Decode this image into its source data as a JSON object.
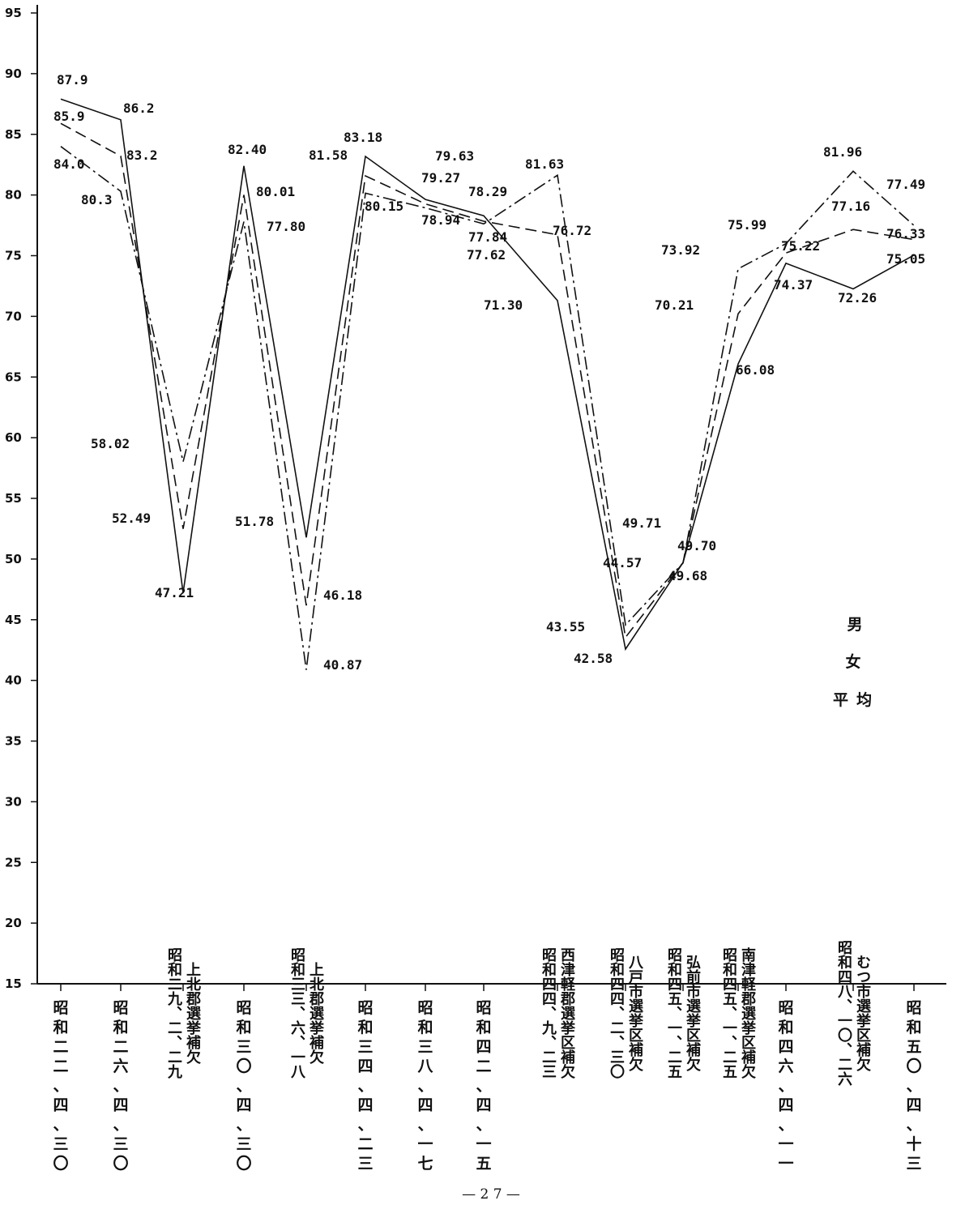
{
  "chart_data": {
    "type": "line",
    "ylim": [
      15,
      95
    ],
    "yticks": [
      "15",
      "20",
      "25",
      "30",
      "35",
      "40",
      "45",
      "50",
      "55",
      "60",
      "65",
      "70",
      "75",
      "80",
      "85",
      "90",
      "95"
    ],
    "grid": false,
    "categories": [
      [
        "昭",
        "和",
        "二",
        "二",
        "、",
        "四",
        "、",
        "三",
        "〇"
      ],
      [
        "昭",
        "和",
        "二",
        "六",
        "、",
        "四",
        "、",
        "三",
        "〇"
      ],
      [
        "上北郡選挙補欠",
        "昭和二九、二、二九"
      ],
      [
        "昭",
        "和",
        "三",
        "〇",
        "、",
        "四",
        "、",
        "三",
        "〇"
      ],
      [
        "上北郡選挙補欠",
        "昭和三三、六、一八"
      ],
      [
        "昭",
        "和",
        "三",
        "四",
        "、",
        "四",
        "、",
        "二",
        "三"
      ],
      [
        "昭",
        "和",
        "三",
        "八",
        "、",
        "四",
        "、",
        "一",
        "七"
      ],
      [
        "昭",
        "和",
        "四",
        "二",
        "、",
        "四",
        "、",
        "一",
        "五"
      ],
      [
        "西津軽郡選挙区補欠",
        "昭和四四、九、二三"
      ],
      [
        "八戸市選挙区補欠",
        "昭和四四、二、三〇"
      ],
      [
        "弘前市選挙区補欠",
        "昭和四五、一、二五"
      ],
      [
        "南津軽郡選挙区補欠",
        "昭和四五、一、二五"
      ],
      [
        "昭",
        "和",
        "四",
        "六",
        "、",
        "四",
        "、",
        "一",
        "一"
      ],
      [
        "むつ市選挙区補欠",
        "昭和四八、一〇、二六"
      ],
      [
        "昭",
        "和",
        "五",
        "〇",
        "、",
        "四",
        "、",
        "十",
        "三"
      ]
    ],
    "series": [
      {
        "style": "solid",
        "values": [
          87.9,
          86.2,
          47.21,
          82.4,
          51.78,
          83.18,
          79.63,
          78.29,
          71.3,
          42.58,
          49.71,
          66.08,
          74.37,
          72.26,
          75.05
        ]
      },
      {
        "style": "dashed",
        "values": [
          85.9,
          83.2,
          52.49,
          80.01,
          46.18,
          81.58,
          79.27,
          77.84,
          76.72,
          43.55,
          49.7,
          70.21,
          75.22,
          77.16,
          76.33
        ]
      },
      {
        "style": "dashdot",
        "values": [
          84.0,
          80.3,
          58.02,
          77.8,
          40.87,
          80.15,
          78.94,
          77.62,
          81.63,
          44.57,
          49.68,
          73.92,
          75.99,
          81.96,
          77.49
        ]
      }
    ],
    "data_labels": [
      "87.9",
      "85.9",
      "84.0",
      "86.2",
      "83.2",
      "80.3",
      "58.02",
      "52.49",
      "47.21",
      "82.40",
      "80.01",
      "77.80",
      "51.78",
      "46.18",
      "40.87",
      "83.18",
      "81.58",
      "80.15",
      "79.63",
      "79.27",
      "78.94",
      "78.29",
      "77.84",
      "77.62",
      "81.63",
      "76.72",
      "71.30",
      "44.57",
      "43.55",
      "42.58",
      "49.71",
      "49.70",
      "49.68",
      "73.92",
      "70.21",
      "66.08",
      "75.99",
      "75.22",
      "74.37",
      "81.96",
      "77.16",
      "72.26",
      "77.49",
      "76.33",
      "75.05"
    ],
    "legend": [
      "男",
      "女",
      "平均"
    ]
  },
  "page_number": "— 2 7 —",
  "colors": {
    "line": "#111111",
    "background": "#ffffff"
  }
}
